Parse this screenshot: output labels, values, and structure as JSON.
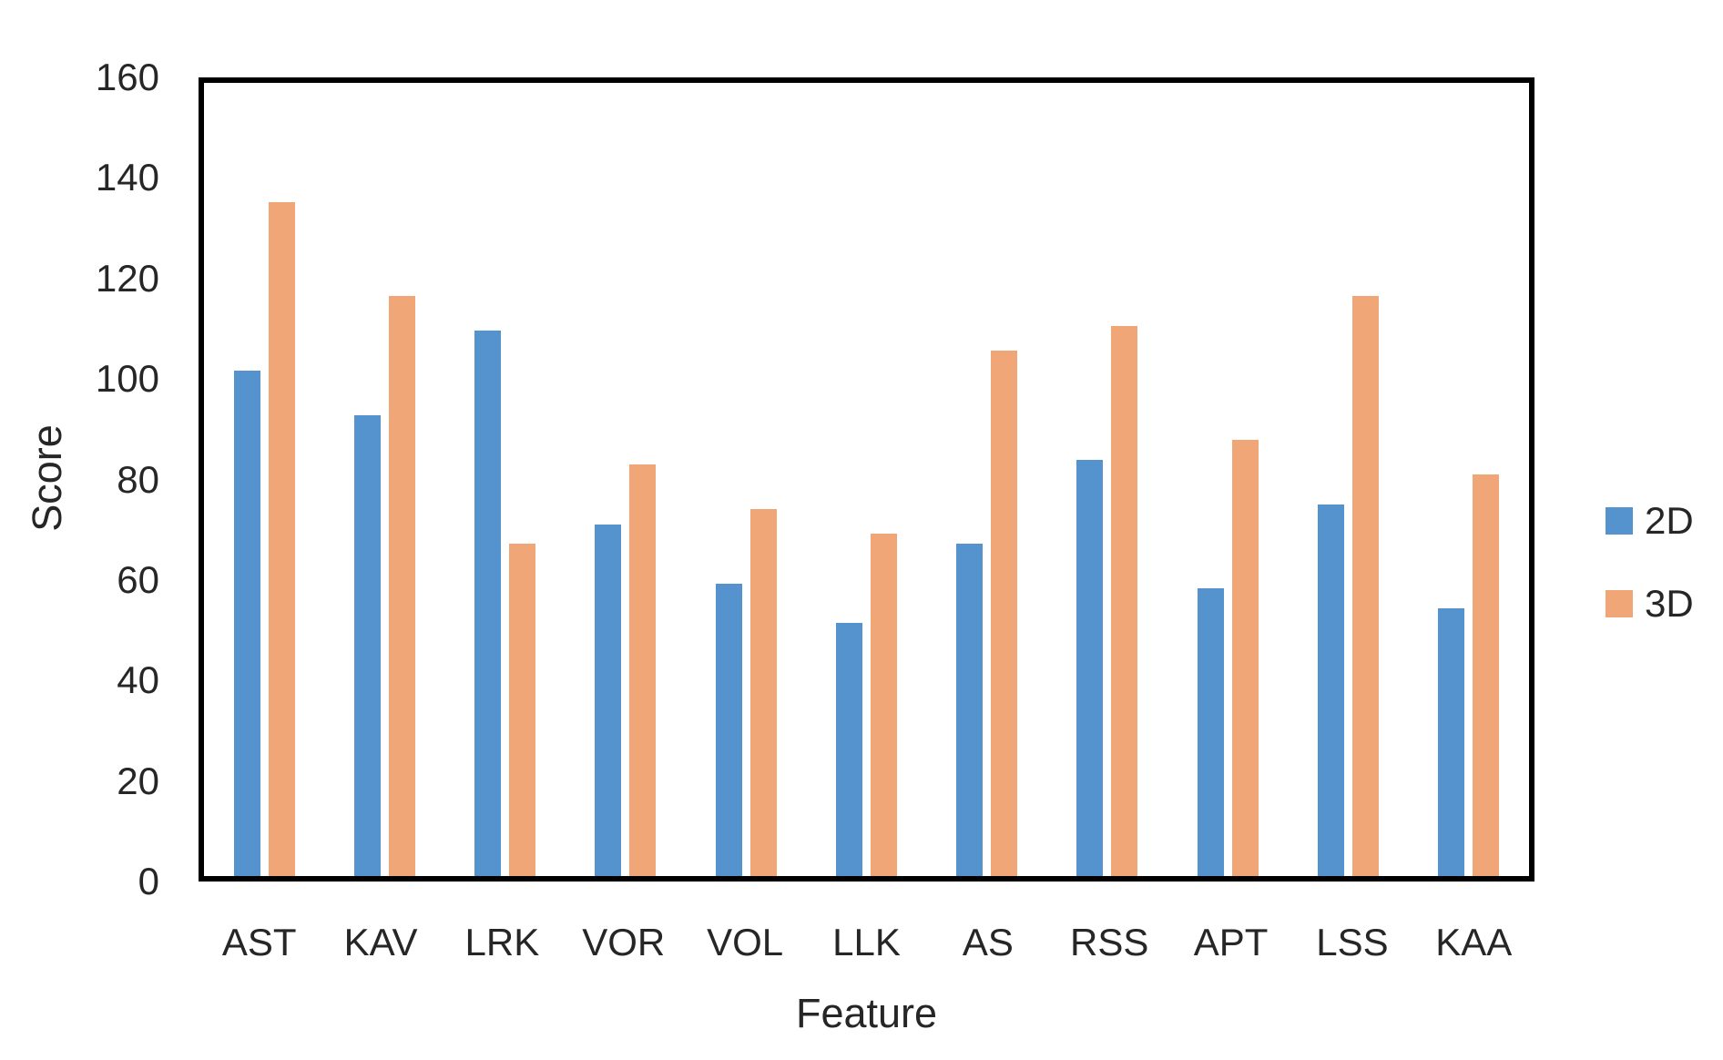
{
  "chart_data": {
    "type": "bar",
    "title": "",
    "categories": [
      "AST",
      "KAV",
      "LRK",
      "VOR",
      "VOL",
      "LLK",
      "AS",
      "RSS",
      "APT",
      "LSS",
      "KAA"
    ],
    "series": [
      {
        "name": "2D",
        "color": "#5593CE",
        "values": [
          102,
          93,
          110,
          71,
          59,
          51,
          67,
          84,
          58,
          75,
          54
        ]
      },
      {
        "name": "3D",
        "color": "#F1A678",
        "values": [
          136,
          117,
          67,
          83,
          74,
          69,
          106,
          111,
          88,
          117,
          81
        ]
      }
    ],
    "xlabel": "Feature",
    "ylabel": "Score",
    "ylim": [
      0,
      160
    ],
    "ytick_step": 20,
    "yticks": [
      0,
      20,
      40,
      60,
      80,
      100,
      120,
      140,
      160
    ],
    "grid": false,
    "legend_position": "right-middle"
  },
  "colors": {
    "frame": "#000000",
    "text": "#262626",
    "background": "#ffffff"
  }
}
